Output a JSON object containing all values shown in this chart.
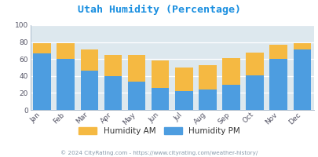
{
  "title": "Utah Humidity (Percentage)",
  "months": [
    "Jan",
    "Feb",
    "Mar",
    "Apr",
    "May",
    "Jun",
    "Jul",
    "Aug",
    "Sep",
    "Oct",
    "Nov",
    "Dec"
  ],
  "humidity_pm": [
    67,
    60,
    46,
    40,
    33,
    26,
    22,
    24,
    30,
    41,
    60,
    71
  ],
  "humidity_am_total": [
    79,
    79,
    71,
    65,
    65,
    58,
    50,
    53,
    61,
    68,
    77,
    79
  ],
  "color_pm": "#4d9de0",
  "color_am": "#f5b942",
  "bg_color": "#dde8ee",
  "ylim": [
    0,
    100
  ],
  "yticks": [
    0,
    20,
    40,
    60,
    80,
    100
  ],
  "legend_am": "Humidity AM",
  "legend_pm": "Humidity PM",
  "footer": "© 2024 CityRating.com - https://www.cityrating.com/weather-history/",
  "title_color": "#1a8fe0",
  "footer_color": "#8899aa",
  "legend_text_color": "#333333"
}
